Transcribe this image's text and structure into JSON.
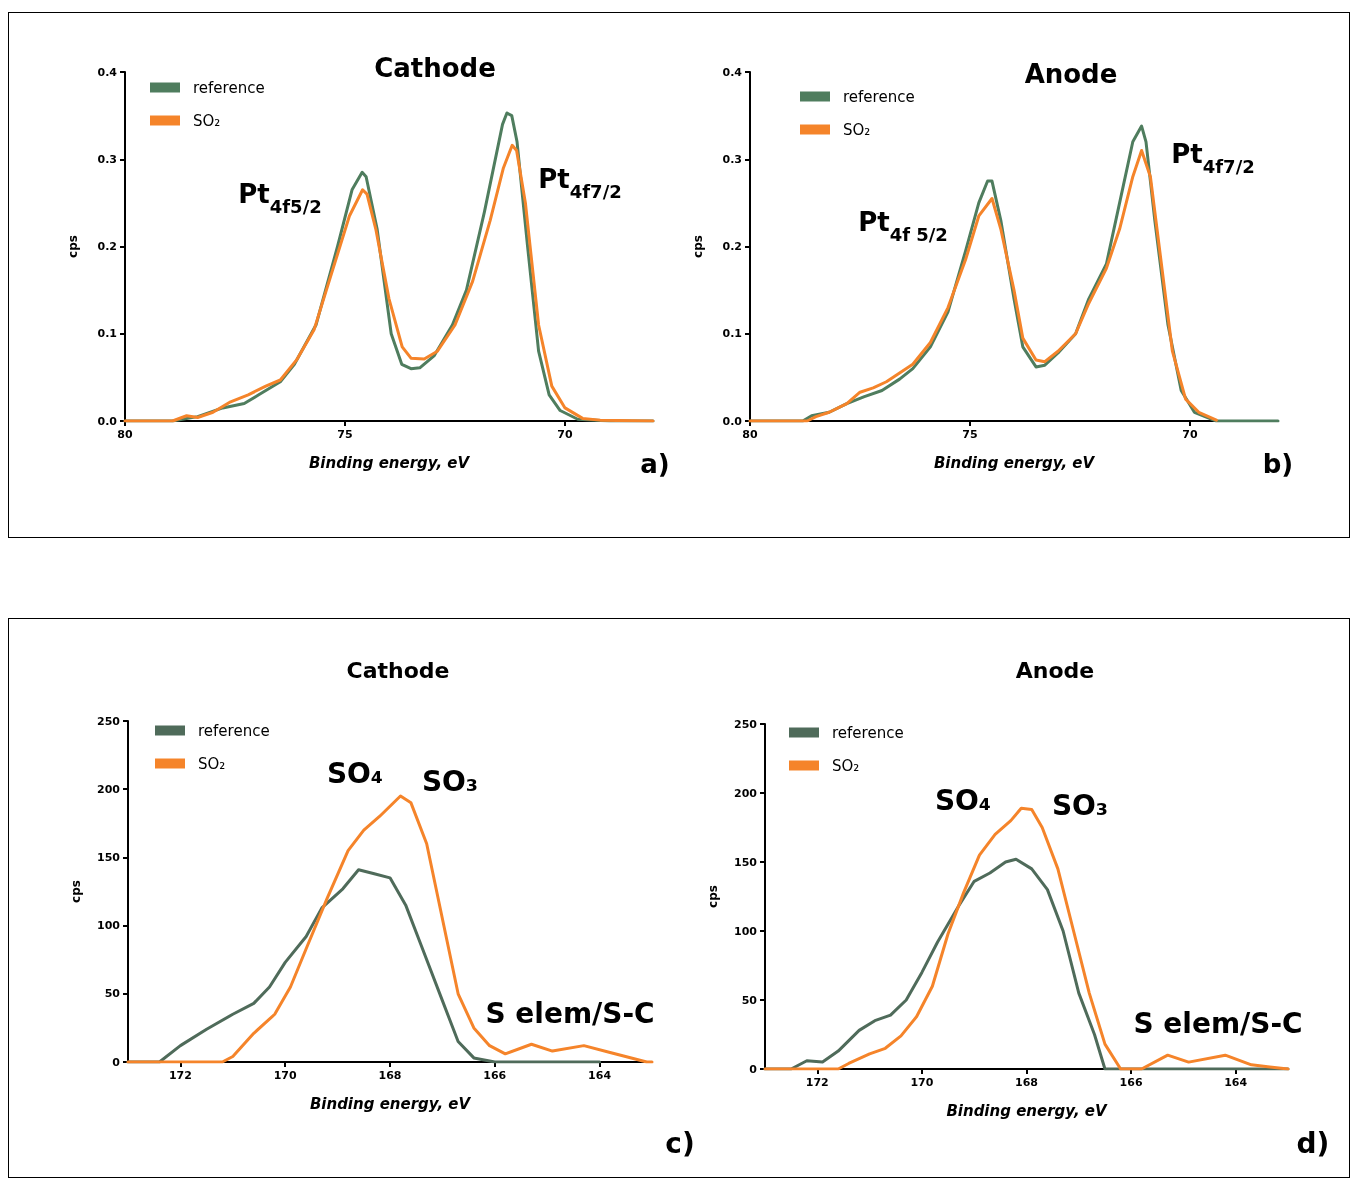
{
  "chart_data": [
    {
      "type": "line",
      "title": "Cathode",
      "xlabel": "Binding energy, eV",
      "ylabel": "cps",
      "xlim": [
        80,
        68
      ],
      "xticks": [
        80,
        75,
        70
      ],
      "ylim": [
        0,
        0.4
      ],
      "yticks": [
        {
          "value": 0,
          "label": "0.0"
        },
        {
          "value": 0.1,
          "label": "0.1"
        },
        {
          "value": 0.2,
          "label": "0.2"
        },
        {
          "value": 0.3,
          "label": "0.3"
        },
        {
          "value": 0.4,
          "label": "0.4"
        }
      ],
      "legend": "top left",
      "marker": "none",
      "line_style": "solid",
      "series": [
        {
          "name": "reference",
          "color": "#4f7d5e",
          "x": [
            80,
            78.92,
            78.35,
            77.78,
            77.29,
            76.96,
            76.47,
            76.15,
            75.66,
            75.17,
            74.84,
            74.61,
            74.52,
            74.27,
            73.95,
            73.71,
            73.5,
            73.3,
            72.97,
            72.56,
            72.24,
            71.83,
            71.42,
            71.32,
            71.21,
            71.09,
            70.85,
            70.6,
            70.36,
            70.11,
            69.71,
            68.98,
            68
          ],
          "values": [
            0,
            0,
            0.005,
            0.015,
            0.02,
            0.03,
            0.045,
            0.065,
            0.11,
            0.2,
            0.265,
            0.285,
            0.28,
            0.22,
            0.1,
            0.065,
            0.06,
            0.061,
            0.075,
            0.11,
            0.15,
            0.24,
            0.34,
            0.353,
            0.35,
            0.32,
            0.2,
            0.08,
            0.03,
            0.012,
            0.002,
            0,
            0
          ]
        },
        {
          "name": "SO₂",
          "color": "#f5842a",
          "x": [
            80,
            78.92,
            78.6,
            78.35,
            78,
            77.6,
            77.2,
            76.8,
            76.47,
            76.1,
            75.7,
            75.3,
            74.9,
            74.6,
            74.5,
            74.3,
            74,
            73.7,
            73.5,
            73.2,
            72.9,
            72.5,
            72.1,
            71.7,
            71.4,
            71.2,
            71.1,
            70.9,
            70.6,
            70.3,
            70,
            69.6,
            69.2,
            68
          ],
          "values": [
            0,
            0,
            0.006,
            0.004,
            0.01,
            0.022,
            0.03,
            0.04,
            0.047,
            0.07,
            0.105,
            0.17,
            0.235,
            0.265,
            0.26,
            0.22,
            0.14,
            0.085,
            0.072,
            0.071,
            0.08,
            0.11,
            0.16,
            0.23,
            0.29,
            0.316,
            0.31,
            0.25,
            0.11,
            0.04,
            0.015,
            0.003,
            0.001,
            0
          ]
        }
      ],
      "annotations": [
        "Pt$_{4f5/2}$",
        "Pt$_{4f7/2}$",
        "a)"
      ]
    },
    {
      "type": "line",
      "title": "Anode",
      "xlabel": "Binding energy, eV",
      "ylabel": "cps",
      "xlim": [
        80,
        68
      ],
      "xticks": [
        80,
        75,
        70
      ],
      "ylim": [
        0,
        0.4
      ],
      "yticks": [
        {
          "value": 0,
          "label": "0.0"
        },
        {
          "value": 0.1,
          "label": "0.1"
        },
        {
          "value": 0.2,
          "label": "0.2"
        },
        {
          "value": 0.3,
          "label": "0.3"
        },
        {
          "value": 0.4,
          "label": "0.4"
        }
      ],
      "legend": "top left",
      "marker": "none",
      "line_style": "solid",
      "series": [
        {
          "name": "reference",
          "color": "#4f7d5e",
          "x": [
            80,
            78.8,
            78.6,
            78.2,
            77.8,
            77.4,
            77,
            76.6,
            76.3,
            75.9,
            75.5,
            75.1,
            74.8,
            74.6,
            74.5,
            74.3,
            74,
            73.8,
            73.5,
            73.3,
            73,
            72.6,
            72.3,
            71.9,
            71.6,
            71.3,
            71.1,
            71,
            70.8,
            70.5,
            70.2,
            69.9,
            69.5,
            69.4,
            68
          ],
          "values": [
            0,
            0,
            0.006,
            0.01,
            0.02,
            0.028,
            0.035,
            0.048,
            0.06,
            0.085,
            0.125,
            0.195,
            0.25,
            0.275,
            0.275,
            0.23,
            0.14,
            0.085,
            0.062,
            0.064,
            0.078,
            0.1,
            0.14,
            0.18,
            0.25,
            0.32,
            0.338,
            0.32,
            0.23,
            0.11,
            0.035,
            0.01,
            0.002,
            0,
            0
          ]
        },
        {
          "name": "SO₂",
          "color": "#f5842a",
          "x": [
            80,
            78.7,
            78.5,
            78.2,
            77.8,
            77.5,
            77.2,
            76.9,
            76.6,
            76.3,
            75.9,
            75.5,
            75.1,
            74.8,
            74.5,
            74.3,
            74,
            73.8,
            73.5,
            73.3,
            73,
            72.6,
            72.3,
            71.9,
            71.6,
            71.3,
            71.1,
            70.9,
            70.7,
            70.4,
            70.1,
            69.8,
            69.4
          ],
          "values": [
            0,
            0,
            0.005,
            0.01,
            0.02,
            0.033,
            0.038,
            0.045,
            0.055,
            0.065,
            0.09,
            0.13,
            0.185,
            0.235,
            0.255,
            0.22,
            0.15,
            0.095,
            0.07,
            0.068,
            0.08,
            0.1,
            0.135,
            0.175,
            0.22,
            0.28,
            0.31,
            0.28,
            0.2,
            0.08,
            0.025,
            0.01,
            0.001
          ]
        }
      ],
      "annotations": [
        "Pt$_{4f 5/2}$",
        "Pt$_{4f7/2}$",
        "b)"
      ]
    },
    {
      "type": "line",
      "title": "Cathode",
      "xlabel": "Binding energy, eV",
      "ylabel": "cps",
      "xlim": [
        173,
        163
      ],
      "xticks": [
        172,
        170,
        168,
        166,
        164
      ],
      "ylim": [
        0,
        250
      ],
      "yticks": [
        0,
        50,
        100,
        150,
        200,
        250
      ],
      "legend": "top left",
      "marker": "none",
      "line_style": "solid",
      "series": [
        {
          "name": "reference",
          "color": "#4f6b5a",
          "x": [
            173,
            172.4,
            172,
            171.5,
            171,
            170.6,
            170.3,
            170,
            169.6,
            169.3,
            168.9,
            168.6,
            168.3,
            168,
            167.7,
            167.4,
            167,
            166.7,
            166.4,
            166,
            165,
            164
          ],
          "values": [
            0,
            0,
            12,
            24,
            35,
            43,
            55,
            73,
            92,
            113,
            127,
            141,
            138,
            135,
            115,
            85,
            45,
            15,
            3,
            0,
            0,
            0
          ]
        },
        {
          "name": "SO₂",
          "color": "#f5842a",
          "x": [
            173,
            171.2,
            171,
            170.6,
            170.2,
            169.9,
            169.6,
            169.2,
            168.8,
            168.5,
            168.2,
            167.8,
            167.6,
            167.3,
            167,
            166.7,
            166.4,
            166.1,
            165.8,
            165.3,
            164.9,
            164.3,
            163.8,
            163.1,
            163
          ],
          "values": [
            0,
            0,
            4,
            21,
            35,
            55,
            83,
            120,
            155,
            170,
            180,
            195,
            190,
            160,
            105,
            50,
            25,
            12,
            6,
            13,
            8,
            12,
            7,
            0,
            0
          ]
        }
      ],
      "annotations": [
        "SO₄",
        "SO₃",
        "S elem/S-C",
        "c)"
      ]
    },
    {
      "type": "line",
      "title": "Anode",
      "xlabel": "Binding energy, eV",
      "ylabel": "cps",
      "xlim": [
        173,
        163
      ],
      "xticks": [
        172,
        170,
        168,
        166,
        164
      ],
      "ylim": [
        0,
        250
      ],
      "yticks": [
        0,
        50,
        100,
        150,
        200,
        250
      ],
      "legend": "top left",
      "marker": "none",
      "line_style": "solid",
      "series": [
        {
          "name": "reference",
          "color": "#4f6b5a",
          "x": [
            173,
            172.5,
            172.2,
            171.9,
            171.6,
            171.2,
            170.9,
            170.6,
            170.3,
            170,
            169.7,
            169.3,
            169,
            168.7,
            168.4,
            168.2,
            167.9,
            167.6,
            167.3,
            167,
            166.7,
            166.5,
            163
          ],
          "values": [
            0,
            0,
            6,
            5,
            13,
            28,
            35,
            39,
            50,
            70,
            92,
            118,
            136,
            142,
            150,
            152,
            145,
            130,
            100,
            55,
            25,
            0,
            0
          ]
        },
        {
          "name": "SO₂",
          "color": "#f5842a",
          "x": [
            173,
            172.5,
            171.6,
            171.4,
            171,
            170.7,
            170.4,
            170.1,
            169.8,
            169.5,
            169.2,
            168.9,
            168.6,
            168.3,
            168.1,
            167.9,
            167.7,
            167.4,
            167.1,
            166.8,
            166.5,
            166.2,
            165.8,
            165.3,
            164.9,
            164.2,
            163.7,
            163
          ],
          "values": [
            0,
            0,
            0,
            4,
            11,
            15,
            24,
            38,
            60,
            98,
            128,
            155,
            170,
            180,
            189,
            188,
            175,
            145,
            100,
            55,
            18,
            0,
            0,
            10,
            5,
            10,
            3,
            0
          ]
        }
      ],
      "annotations": [
        "SO₄",
        "SO₃",
        "S elem/S-C",
        "d)"
      ]
    }
  ]
}
